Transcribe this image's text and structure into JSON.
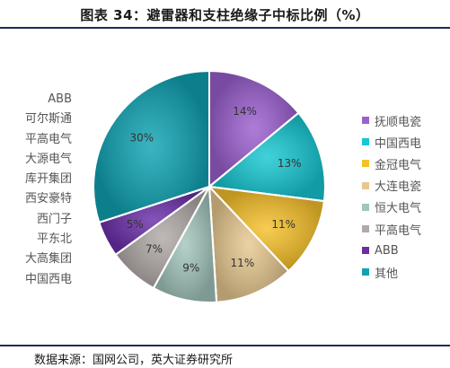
{
  "title": "图表 34：避雷器和支柱绝缘子中标比例（%）",
  "source": "数据来源：国网公司，英大证券研究所",
  "left_legend_items": [
    "ABB",
    "可尔斯通",
    "平高电气",
    "大源电气",
    "库开集团",
    "西安豪特",
    "西门子",
    "平东北",
    "大高集团",
    "中国西电"
  ],
  "chart_data": {
    "type": "pie",
    "title": "避雷器和支柱绝缘子中标比例（%）",
    "slices": [
      {
        "label": "抚顺电瓷",
        "value": 14,
        "value_label": "14%",
        "color": "#9b5fcf"
      },
      {
        "label": "中国西电",
        "value": 13,
        "value_label": "13%",
        "color": "#17c7d2"
      },
      {
        "label": "金冠电气",
        "value": 11,
        "value_label": "11%",
        "color": "#f5c02a"
      },
      {
        "label": "大连电瓷",
        "value": 11,
        "value_label": "11%",
        "color": "#e7c890"
      },
      {
        "label": "恒大电气",
        "value": 9,
        "value_label": "9%",
        "color": "#a3c6bc"
      },
      {
        "label": "平高电气",
        "value": 7,
        "value_label": "7%",
        "color": "#b0a9a7"
      },
      {
        "label": "ABB",
        "value": 5,
        "value_label": "5%",
        "color": "#6a2ea8"
      },
      {
        "label": "其他",
        "value": 30,
        "value_label": "30%",
        "color": "#10a3b3"
      }
    ],
    "legend_position": "right"
  }
}
